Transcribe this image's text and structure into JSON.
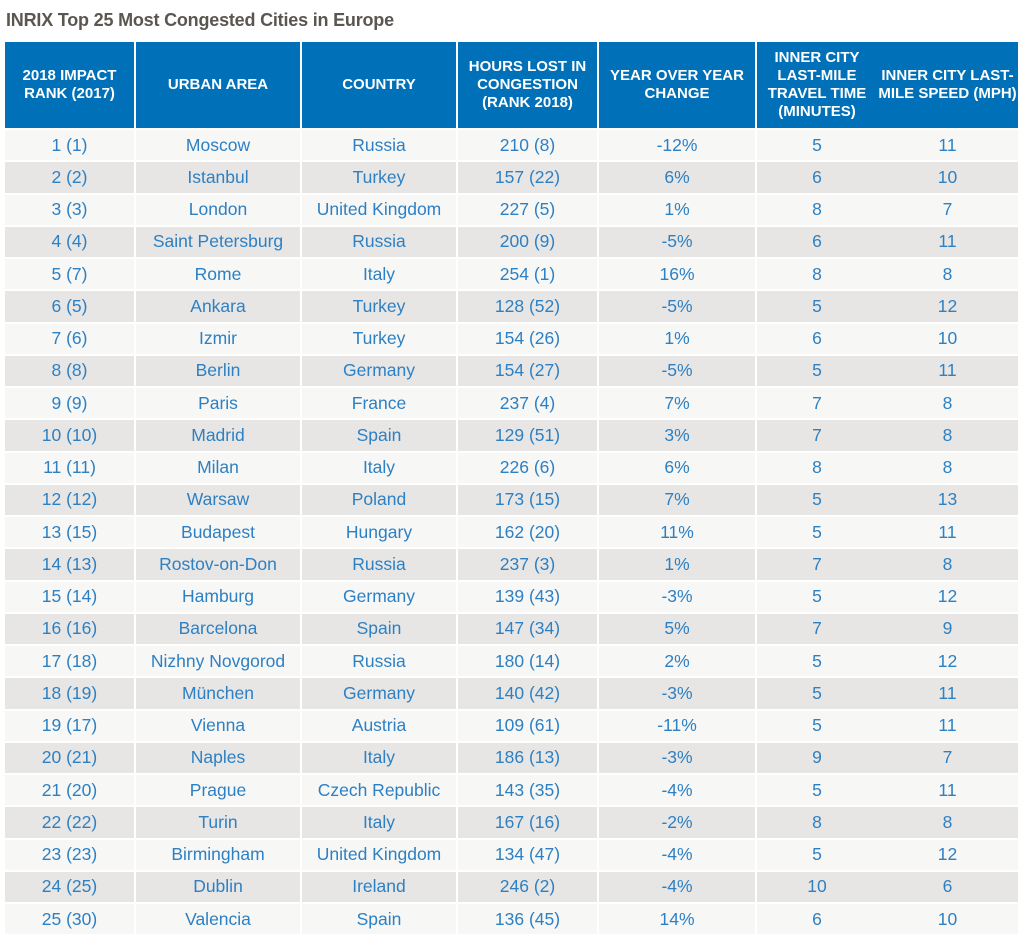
{
  "title": "INRIX Top 25 Most Congested Cities in Europe",
  "colors": {
    "header_bg": "#0070b8",
    "cell_text": "#2d80c3",
    "row_light": "#f7f7f6",
    "row_dark": "#e8e6e4"
  },
  "columns": [
    "2018 IMPACT RANK (2017)",
    "URBAN AREA",
    "COUNTRY",
    "HOURS LOST IN CONGESTION (RANK 2018)",
    "YEAR OVER YEAR CHANGE",
    "INNER CITY LAST-MILE TRAVEL TIME (MINUTES)",
    "INNER CITY LAST-MILE SPEED (MPH)"
  ],
  "rows": [
    [
      "1 (1)",
      "Moscow",
      "Russia",
      "210 (8)",
      "-12%",
      "5",
      "11"
    ],
    [
      "2 (2)",
      "Istanbul",
      "Turkey",
      "157 (22)",
      "6%",
      "6",
      "10"
    ],
    [
      "3 (3)",
      "London",
      "United Kingdom",
      "227 (5)",
      "1%",
      "8",
      "7"
    ],
    [
      "4 (4)",
      "Saint Petersburg",
      "Russia",
      "200 (9)",
      "-5%",
      "6",
      "11"
    ],
    [
      "5 (7)",
      "Rome",
      "Italy",
      "254 (1)",
      "16%",
      "8",
      "8"
    ],
    [
      "6 (5)",
      "Ankara",
      "Turkey",
      "128 (52)",
      "-5%",
      "5",
      "12"
    ],
    [
      "7 (6)",
      "Izmir",
      "Turkey",
      "154 (26)",
      "1%",
      "6",
      "10"
    ],
    [
      "8 (8)",
      "Berlin",
      "Germany",
      "154 (27)",
      "-5%",
      "5",
      "11"
    ],
    [
      "9 (9)",
      "Paris",
      "France",
      "237 (4)",
      "7%",
      "7",
      "8"
    ],
    [
      "10 (10)",
      "Madrid",
      "Spain",
      "129 (51)",
      "3%",
      "7",
      "8"
    ],
    [
      "11 (11)",
      "Milan",
      "Italy",
      "226 (6)",
      "6%",
      "8",
      "8"
    ],
    [
      "12 (12)",
      "Warsaw",
      "Poland",
      "173 (15)",
      "7%",
      "5",
      "13"
    ],
    [
      "13 (15)",
      "Budapest",
      "Hungary",
      "162 (20)",
      "11%",
      "5",
      "11"
    ],
    [
      "14 (13)",
      "Rostov-on-Don",
      "Russia",
      "237 (3)",
      "1%",
      "7",
      "8"
    ],
    [
      "15 (14)",
      "Hamburg",
      "Germany",
      "139 (43)",
      "-3%",
      "5",
      "12"
    ],
    [
      "16 (16)",
      "Barcelona",
      "Spain",
      "147 (34)",
      "5%",
      "7",
      "9"
    ],
    [
      "17 (18)",
      "Nizhny Novgorod",
      "Russia",
      "180 (14)",
      "2%",
      "5",
      "12"
    ],
    [
      "18 (19)",
      "München",
      "Germany",
      "140 (42)",
      "-3%",
      "5",
      "11"
    ],
    [
      "19 (17)",
      "Vienna",
      "Austria",
      "109 (61)",
      "-11%",
      "5",
      "11"
    ],
    [
      "20 (21)",
      "Naples",
      "Italy",
      "186 (13)",
      "-3%",
      "9",
      "7"
    ],
    [
      "21 (20)",
      "Prague",
      "Czech Republic",
      "143 (35)",
      "-4%",
      "5",
      "11"
    ],
    [
      "22 (22)",
      "Turin",
      "Italy",
      "167 (16)",
      "-2%",
      "8",
      "8"
    ],
    [
      "23 (23)",
      "Birmingham",
      "United Kingdom",
      "134 (47)",
      "-4%",
      "5",
      "12"
    ],
    [
      "24 (25)",
      "Dublin",
      "Ireland",
      "246 (2)",
      "-4%",
      "10",
      "6"
    ],
    [
      "25 (30)",
      "Valencia",
      "Spain",
      "136 (45)",
      "14%",
      "6",
      "10"
    ]
  ]
}
